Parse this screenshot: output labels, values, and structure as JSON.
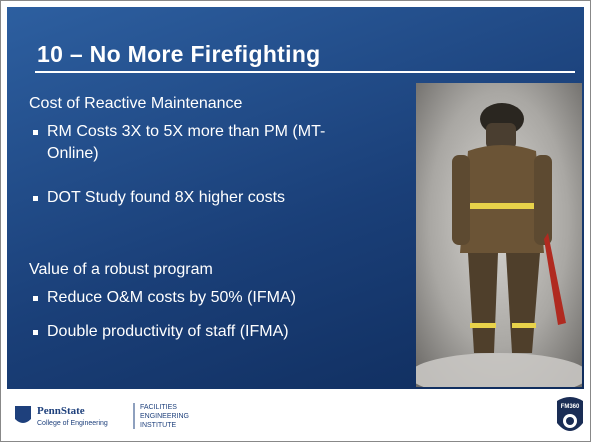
{
  "title": "10 – No More Firefighting",
  "sections": [
    {
      "heading": "Cost of Reactive Maintenance",
      "bullets": [
        "RM Costs 3X to 5X more than PM (MT-Online)",
        "DOT Study found 8X higher costs"
      ]
    },
    {
      "heading": "Value of a robust program",
      "bullets": [
        "Reduce O&M costs by 50% (IFMA)",
        "Double productivity of staff (IFMA)"
      ]
    }
  ],
  "footer": {
    "university": "PennState",
    "college": "College of Engineering",
    "institute": [
      "FACILITIES",
      "ENGINEERING",
      "INSTITUTE"
    ],
    "badge": "FM360"
  }
}
